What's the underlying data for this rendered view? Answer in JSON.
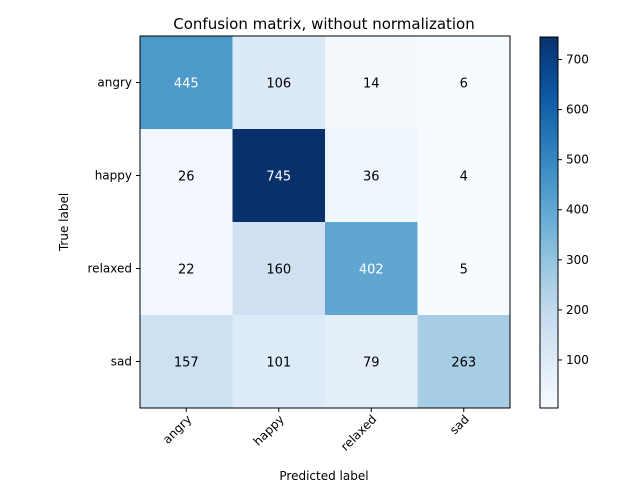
{
  "chart_data": {
    "type": "heatmap",
    "title": "Confusion matrix, without normalization",
    "xlabel": "Predicted label",
    "ylabel": "True label",
    "x_categories": [
      "angry",
      "happy",
      "relaxed",
      "sad"
    ],
    "y_categories": [
      "angry",
      "happy",
      "relaxed",
      "sad"
    ],
    "values": [
      [
        445,
        106,
        14,
        6
      ],
      [
        26,
        745,
        36,
        4
      ],
      [
        22,
        160,
        402,
        5
      ],
      [
        157,
        101,
        79,
        263
      ]
    ],
    "colormap": "Blues",
    "vmin": 4,
    "vmax": 745,
    "colorbar_ticks": [
      100,
      200,
      300,
      400,
      500,
      600,
      700
    ]
  }
}
